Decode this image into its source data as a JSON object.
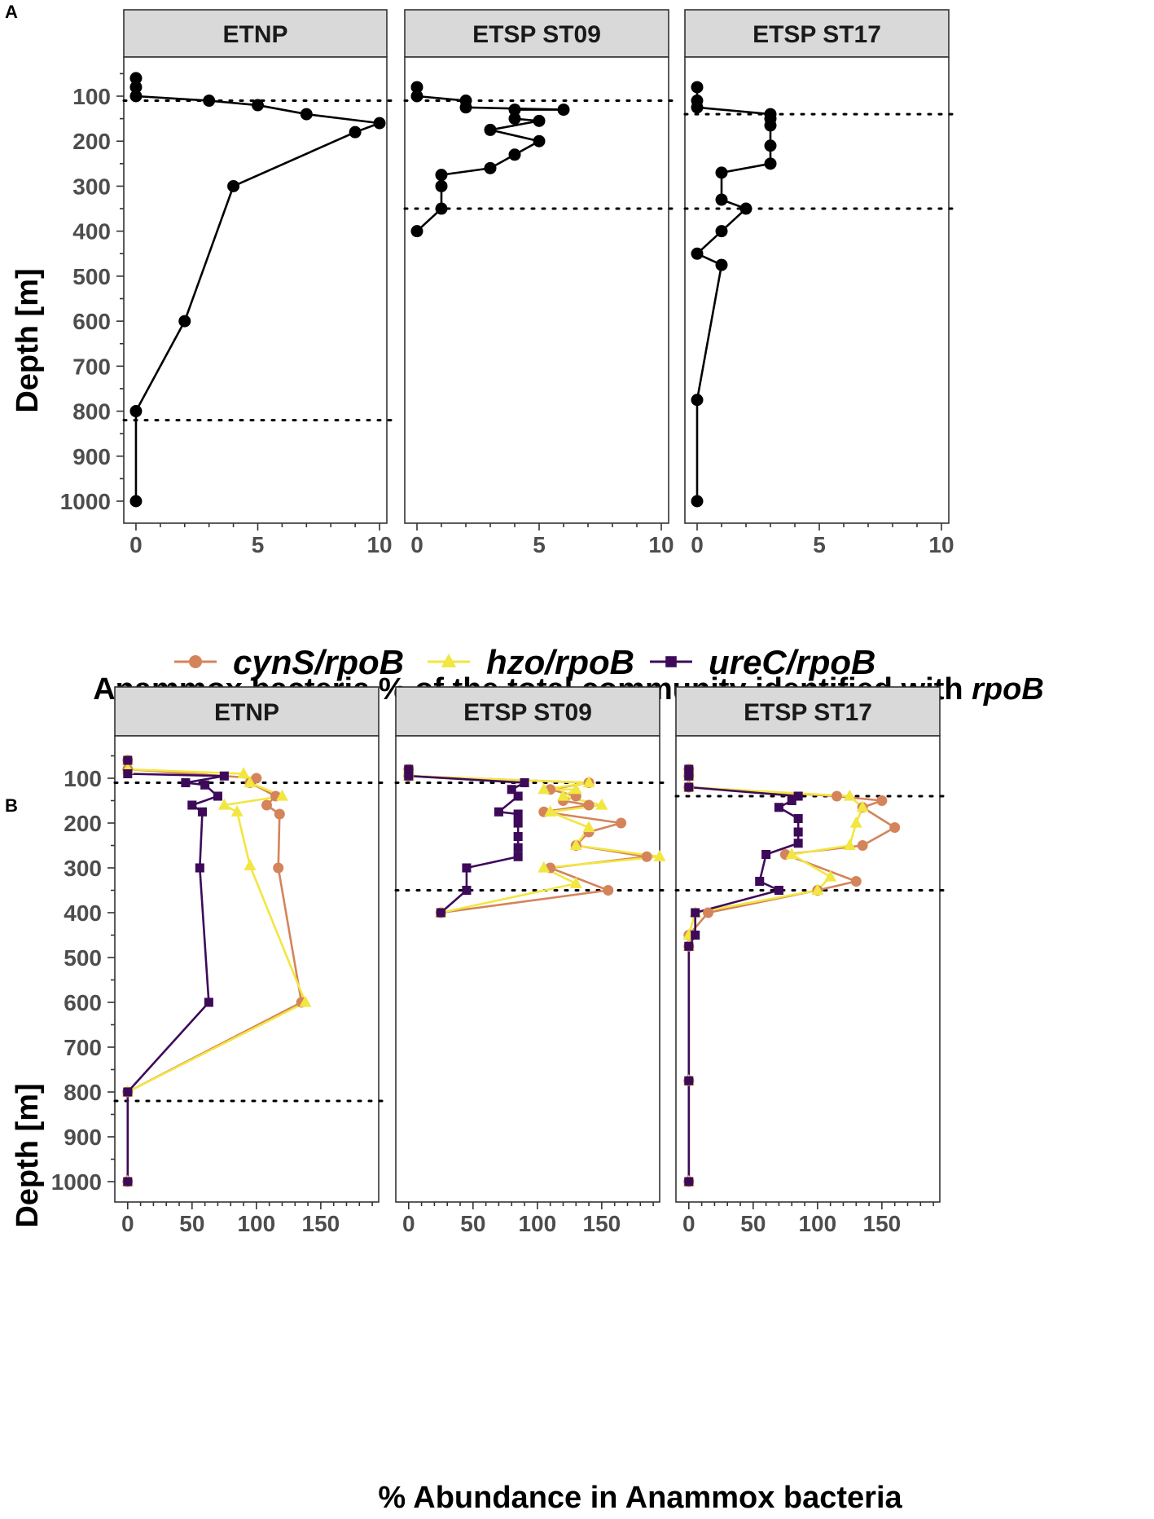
{
  "chart_data": [
    {
      "type": "line",
      "panel_label": "A",
      "xlabel_prefix": "Anammox bacteria % of the total community identified with ",
      "xlabel_italic": "rpoB",
      "ylabel": "Depth [m]",
      "xlim": [
        -0.5,
        10.3
      ],
      "ylim": [
        1040,
        40
      ],
      "xticks": [
        0,
        5,
        10
      ],
      "yticks": [
        100,
        200,
        300,
        400,
        500,
        600,
        700,
        800,
        900,
        1000
      ],
      "facets": [
        {
          "title": "ETNP",
          "hlines": [
            110,
            820
          ],
          "series": [
            {
              "name": "rpoB",
              "color": "#000000",
              "marker": "circle",
              "points": [
                [
                  0,
                  60
                ],
                [
                  0,
                  80
                ],
                [
                  0,
                  100
                ],
                [
                  3,
                  110
                ],
                [
                  5,
                  120
                ],
                [
                  7,
                  140
                ],
                [
                  10,
                  160
                ],
                [
                  9,
                  180
                ],
                [
                  4,
                  300
                ],
                [
                  2,
                  600
                ],
                [
                  0,
                  800
                ],
                [
                  0,
                  1000
                ]
              ]
            }
          ]
        },
        {
          "title": "ETSP ST09",
          "hlines": [
            110,
            350
          ],
          "series": [
            {
              "name": "rpoB",
              "color": "#000000",
              "marker": "circle",
              "points": [
                [
                  0,
                  80
                ],
                [
                  0,
                  100
                ],
                [
                  2,
                  110
                ],
                [
                  2,
                  125
                ],
                [
                  6,
                  130
                ],
                [
                  4,
                  130
                ],
                [
                  4,
                  150
                ],
                [
                  5,
                  155
                ],
                [
                  3,
                  175
                ],
                [
                  5,
                  200
                ],
                [
                  4,
                  230
                ],
                [
                  3,
                  260
                ],
                [
                  1,
                  275
                ],
                [
                  1,
                  300
                ],
                [
                  1,
                  350
                ],
                [
                  0,
                  400
                ]
              ]
            }
          ]
        },
        {
          "title": "ETSP ST17",
          "hlines": [
            140,
            350
          ],
          "series": [
            {
              "name": "rpoB",
              "color": "#000000",
              "marker": "circle",
              "points": [
                [
                  0,
                  80
                ],
                [
                  0,
                  110
                ],
                [
                  0,
                  125
                ],
                [
                  3,
                  140
                ],
                [
                  3,
                  150
                ],
                [
                  3,
                  165
                ],
                [
                  3,
                  210
                ],
                [
                  3,
                  250
                ],
                [
                  1,
                  270
                ],
                [
                  1,
                  330
                ],
                [
                  2,
                  350
                ],
                [
                  1,
                  400
                ],
                [
                  0,
                  450
                ],
                [
                  1,
                  475
                ],
                [
                  0,
                  775
                ],
                [
                  0,
                  1000
                ]
              ]
            }
          ]
        }
      ]
    },
    {
      "type": "line",
      "panel_label": "B",
      "xlabel": "% Abundance in Anammox bacteria",
      "ylabel": "Depth [m]",
      "xlim": [
        -10,
        195
      ],
      "ylim": [
        1040,
        40
      ],
      "xticks": [
        0,
        50,
        100,
        150
      ],
      "yticks": [
        100,
        200,
        300,
        400,
        500,
        600,
        700,
        800,
        900,
        1000
      ],
      "legend": [
        {
          "label": "cynS/rpoB",
          "color": "#D4845A",
          "marker": "circle"
        },
        {
          "label": "hzo/rpoB",
          "color": "#F2E640",
          "marker": "triangle"
        },
        {
          "label": "ureC/rpoB",
          "color": "#3D0A5A",
          "marker": "square"
        }
      ],
      "facets": [
        {
          "title": "ETNP",
          "hlines": [
            110,
            820
          ],
          "series": [
            {
              "name": "cynS/rpoB",
              "color": "#D4845A",
              "marker": "circle",
              "points": [
                [
                  0,
                  60
                ],
                [
                  0,
                  80
                ],
                [
                  100,
                  100
                ],
                [
                  95,
                  110
                ],
                [
                  115,
                  140
                ],
                [
                  108,
                  160
                ],
                [
                  118,
                  180
                ],
                [
                  117,
                  300
                ],
                [
                  135,
                  600
                ],
                [
                  0,
                  800
                ],
                [
                  0,
                  1000
                ]
              ]
            },
            {
              "name": "hzo/rpoB",
              "color": "#F2E640",
              "marker": "triangle",
              "points": [
                [
                  0,
                  60
                ],
                [
                  0,
                  80
                ],
                [
                  90,
                  90
                ],
                [
                  95,
                  110
                ],
                [
                  120,
                  140
                ],
                [
                  75,
                  160
                ],
                [
                  85,
                  175
                ],
                [
                  95,
                  295
                ],
                [
                  138,
                  600
                ],
                [
                  0,
                  800
                ],
                [
                  0,
                  1000
                ]
              ]
            },
            {
              "name": "ureC/rpoB",
              "color": "#3D0A5A",
              "marker": "square",
              "points": [
                [
                  0,
                  60
                ],
                [
                  0,
                  90
                ],
                [
                  75,
                  95
                ],
                [
                  45,
                  110
                ],
                [
                  60,
                  115
                ],
                [
                  70,
                  140
                ],
                [
                  50,
                  160
                ],
                [
                  58,
                  175
                ],
                [
                  56,
                  300
                ],
                [
                  63,
                  600
                ],
                [
                  0,
                  800
                ],
                [
                  0,
                  1000
                ]
              ]
            }
          ]
        },
        {
          "title": "ETSP ST09",
          "hlines": [
            110,
            350
          ],
          "series": [
            {
              "name": "cynS/rpoB",
              "color": "#D4845A",
              "marker": "circle",
              "points": [
                [
                  0,
                  80
                ],
                [
                  0,
                  95
                ],
                [
                  140,
                  110
                ],
                [
                  110,
                  125
                ],
                [
                  130,
                  140
                ],
                [
                  120,
                  150
                ],
                [
                  140,
                  160
                ],
                [
                  105,
                  175
                ],
                [
                  165,
                  200
                ],
                [
                  140,
                  220
                ],
                [
                  130,
                  250
                ],
                [
                  185,
                  275
                ],
                [
                  110,
                  300
                ],
                [
                  155,
                  350
                ],
                [
                  25,
                  400
                ]
              ]
            },
            {
              "name": "hzo/rpoB",
              "color": "#F2E640",
              "marker": "triangle",
              "points": [
                [
                  0,
                  80
                ],
                [
                  0,
                  95
                ],
                [
                  140,
                  110
                ],
                [
                  105,
                  125
                ],
                [
                  130,
                  125
                ],
                [
                  120,
                  140
                ],
                [
                  150,
                  160
                ],
                [
                  110,
                  175
                ],
                [
                  140,
                  210
                ],
                [
                  130,
                  250
                ],
                [
                  195,
                  275
                ],
                [
                  105,
                  300
                ],
                [
                  130,
                  335
                ],
                [
                  25,
                  400
                ]
              ]
            },
            {
              "name": "ureC/rpoB",
              "color": "#3D0A5A",
              "marker": "square",
              "points": [
                [
                  0,
                  80
                ],
                [
                  0,
                  95
                ],
                [
                  90,
                  110
                ],
                [
                  80,
                  125
                ],
                [
                  85,
                  140
                ],
                [
                  70,
                  175
                ],
                [
                  85,
                  180
                ],
                [
                  85,
                  200
                ],
                [
                  85,
                  230
                ],
                [
                  85,
                  255
                ],
                [
                  85,
                  275
                ],
                [
                  45,
                  300
                ],
                [
                  45,
                  350
                ],
                [
                  25,
                  400
                ]
              ]
            }
          ]
        },
        {
          "title": "ETSP ST17",
          "hlines": [
            140,
            350
          ],
          "series": [
            {
              "name": "cynS/rpoB",
              "color": "#D4845A",
              "marker": "circle",
              "points": [
                [
                  0,
                  80
                ],
                [
                  0,
                  95
                ],
                [
                  0,
                  120
                ],
                [
                  115,
                  140
                ],
                [
                  150,
                  150
                ],
                [
                  135,
                  165
                ],
                [
                  160,
                  210
                ],
                [
                  135,
                  250
                ],
                [
                  75,
                  270
                ],
                [
                  130,
                  330
                ],
                [
                  100,
                  350
                ],
                [
                  15,
                  400
                ],
                [
                  0,
                  450
                ],
                [
                  0,
                  475
                ],
                [
                  0,
                  775
                ],
                [
                  0,
                  1000
                ]
              ]
            },
            {
              "name": "hzo/rpoB",
              "color": "#F2E640",
              "marker": "triangle",
              "points": [
                [
                  0,
                  80
                ],
                [
                  0,
                  95
                ],
                [
                  0,
                  120
                ],
                [
                  125,
                  140
                ],
                [
                  135,
                  165
                ],
                [
                  130,
                  200
                ],
                [
                  125,
                  250
                ],
                [
                  80,
                  270
                ],
                [
                  110,
                  320
                ],
                [
                  100,
                  350
                ],
                [
                  5,
                  400
                ],
                [
                  0,
                  450
                ],
                [
                  0,
                  475
                ],
                [
                  0,
                  775
                ],
                [
                  0,
                  1000
                ]
              ]
            },
            {
              "name": "ureC/rpoB",
              "color": "#3D0A5A",
              "marker": "square",
              "points": [
                [
                  0,
                  80
                ],
                [
                  0,
                  95
                ],
                [
                  0,
                  120
                ],
                [
                  85,
                  140
                ],
                [
                  80,
                  150
                ],
                [
                  70,
                  165
                ],
                [
                  85,
                  190
                ],
                [
                  85,
                  220
                ],
                [
                  85,
                  245
                ],
                [
                  60,
                  270
                ],
                [
                  55,
                  330
                ],
                [
                  70,
                  350
                ],
                [
                  5,
                  400
                ],
                [
                  5,
                  450
                ],
                [
                  0,
                  475
                ],
                [
                  0,
                  775
                ],
                [
                  0,
                  1000
                ]
              ]
            }
          ]
        }
      ]
    }
  ]
}
